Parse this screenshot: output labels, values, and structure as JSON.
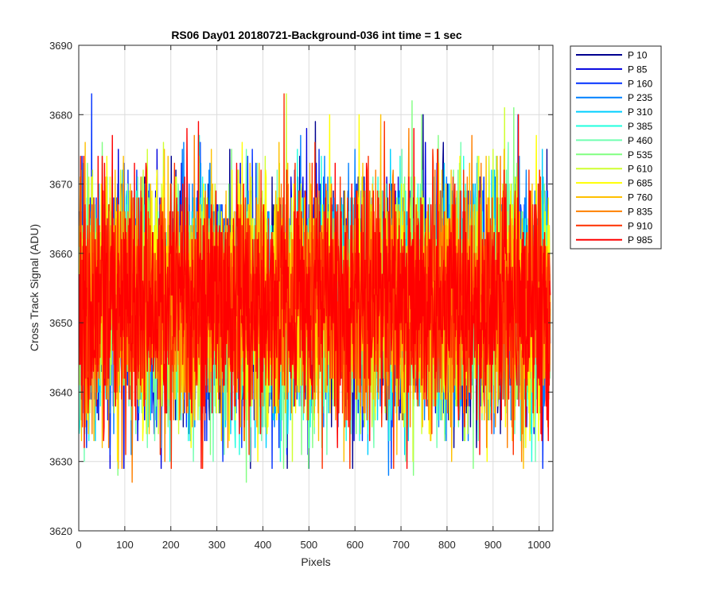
{
  "chart_data": {
    "type": "line",
    "title": "RS06 Day01 20180721-Background-036 int time = 1 sec",
    "xlabel": "Pixels",
    "ylabel": "Cross Track Signal (ADU)",
    "xlim": [
      0,
      1030
    ],
    "ylim": [
      3620,
      3690
    ],
    "x_ticks": [
      0,
      100,
      200,
      300,
      400,
      500,
      600,
      700,
      800,
      900,
      1000
    ],
    "y_ticks": [
      3620,
      3630,
      3640,
      3650,
      3660,
      3670,
      3680,
      3690
    ],
    "grid": true,
    "legend_position": "outside-top-right",
    "x": {
      "start": 1,
      "end": 1024,
      "step": 1
    },
    "series": [
      {
        "name": "P 10",
        "color": "#00008F",
        "mean": 3653.0,
        "noise_min": 3629,
        "noise_max": 3688
      },
      {
        "name": "P 85",
        "color": "#0000DF",
        "mean": 3653.0,
        "noise_min": 3629,
        "noise_max": 3682
      },
      {
        "name": "P 160",
        "color": "#0030FF",
        "mean": 3653.0,
        "noise_min": 3629,
        "noise_max": 3683
      },
      {
        "name": "P 235",
        "color": "#0080FF",
        "mean": 3653.0,
        "noise_min": 3628,
        "noise_max": 3683
      },
      {
        "name": "P 310",
        "color": "#00CFFF",
        "mean": 3653.0,
        "noise_min": 3625,
        "noise_max": 3686
      },
      {
        "name": "P 385",
        "color": "#20FFDF",
        "mean": 3653.0,
        "noise_min": 3630,
        "noise_max": 3682
      },
      {
        "name": "P 460",
        "color": "#70FFB0",
        "mean": 3653.0,
        "noise_min": 3630,
        "noise_max": 3682
      },
      {
        "name": "P 535",
        "color": "#80FF80",
        "mean": 3653.0,
        "noise_min": 3627,
        "noise_max": 3683
      },
      {
        "name": "P 610",
        "color": "#CFFF30",
        "mean": 3653.0,
        "noise_min": 3630,
        "noise_max": 3683
      },
      {
        "name": "P 685",
        "color": "#FFFF00",
        "mean": 3653.0,
        "noise_min": 3630,
        "noise_max": 3680
      },
      {
        "name": "P 760",
        "color": "#FFC000",
        "mean": 3653.0,
        "noise_min": 3625,
        "noise_max": 3682
      },
      {
        "name": "P 835",
        "color": "#FF8000",
        "mean": 3653.0,
        "noise_min": 3627,
        "noise_max": 3686
      },
      {
        "name": "P 910",
        "color": "#FF3000",
        "mean": 3653.0,
        "noise_min": 3629,
        "noise_max": 3683
      },
      {
        "name": "P 985",
        "color": "#FF0000",
        "mean": 3653.0,
        "noise_min": 3629,
        "noise_max": 3680
      }
    ]
  }
}
